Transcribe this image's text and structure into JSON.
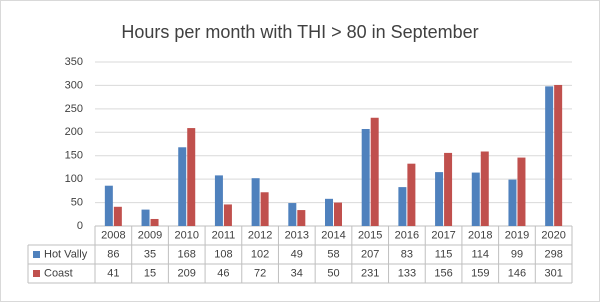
{
  "chart_data": {
    "type": "bar",
    "title": "Hours per month with THI > 80 in September",
    "categories": [
      "2008",
      "2009",
      "2010",
      "2011",
      "2012",
      "2013",
      "2014",
      "2015",
      "2016",
      "2017",
      "2018",
      "2019",
      "2020"
    ],
    "series": [
      {
        "name": "Hot Vally",
        "color": "#4f81bd",
        "values": [
          86,
          35,
          168,
          108,
          102,
          49,
          58,
          207,
          83,
          115,
          114,
          99,
          298
        ]
      },
      {
        "name": "Coast",
        "color": "#c0504d",
        "values": [
          41,
          15,
          209,
          46,
          72,
          34,
          50,
          231,
          133,
          156,
          159,
          146,
          301
        ]
      }
    ],
    "ylim": [
      0,
      350
    ],
    "yticks": [
      0,
      50,
      100,
      150,
      200,
      250,
      300,
      350
    ],
    "grid": true
  }
}
